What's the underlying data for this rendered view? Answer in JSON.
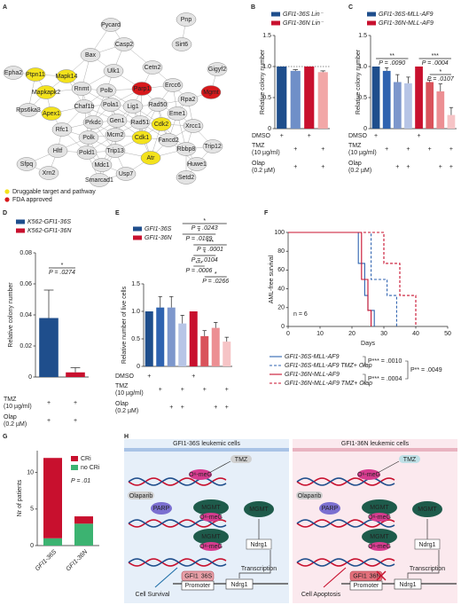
{
  "panel_labels": [
    "A",
    "B",
    "C",
    "D",
    "E",
    "F",
    "G",
    "H"
  ],
  "network": {
    "nodes": [
      {
        "label": "Pycard",
        "color": "#e3e3e3"
      },
      {
        "label": "Pnp",
        "color": "#e3e3e3"
      },
      {
        "label": "Casp2",
        "color": "#e3e3e3"
      },
      {
        "label": "Sirt6",
        "color": "#e3e3e3"
      },
      {
        "label": "Bax",
        "color": "#e3e3e3"
      },
      {
        "label": "Ulk1",
        "color": "#e3e3e3"
      },
      {
        "label": "Cetn2",
        "color": "#e3e3e3"
      },
      {
        "label": "Gigyf2",
        "color": "#e3e3e3"
      },
      {
        "label": "Epha2",
        "color": "#e3e3e3"
      },
      {
        "label": "Ptpn11",
        "color": "#f3e21c"
      },
      {
        "label": "Mapk14",
        "color": "#f3e21c"
      },
      {
        "label": "Mapkapk2",
        "color": "#f3e21c"
      },
      {
        "label": "Rnmt",
        "color": "#e3e3e3"
      },
      {
        "label": "Polb",
        "color": "#e3e3e3"
      },
      {
        "label": "Parp1",
        "color": "#d7191c"
      },
      {
        "label": "Ercc6",
        "color": "#e3e3e3"
      },
      {
        "label": "Rpa2",
        "color": "#e3e3e3"
      },
      {
        "label": "Mgmt",
        "color": "#d7191c"
      },
      {
        "label": "Rps6ka3",
        "color": "#e3e3e3"
      },
      {
        "label": "Apex1",
        "color": "#f3e21c"
      },
      {
        "label": "Chaf1b",
        "color": "#e3e3e3"
      },
      {
        "label": "Pola1",
        "color": "#e3e3e3"
      },
      {
        "label": "Lig1",
        "color": "#e3e3e3"
      },
      {
        "label": "Rad50",
        "color": "#e3e3e3"
      },
      {
        "label": "Eme1",
        "color": "#e3e3e3"
      },
      {
        "label": "Prkdc",
        "color": "#e3e3e3"
      },
      {
        "label": "Gen1",
        "color": "#e3e3e3"
      },
      {
        "label": "Rad51",
        "color": "#e3e3e3"
      },
      {
        "label": "Cdk2",
        "color": "#f3e21c"
      },
      {
        "label": "Xrcc1",
        "color": "#e3e3e3"
      },
      {
        "label": "Rfc1",
        "color": "#e3e3e3"
      },
      {
        "label": "Polk",
        "color": "#e3e3e3"
      },
      {
        "label": "Mcm2",
        "color": "#e3e3e3"
      },
      {
        "label": "Cdk1",
        "color": "#f3e21c"
      },
      {
        "label": "Fancd2",
        "color": "#e3e3e3"
      },
      {
        "label": "Hltf",
        "color": "#e3e3e3"
      },
      {
        "label": "Pold1",
        "color": "#e3e3e3"
      },
      {
        "label": "Trip13",
        "color": "#e3e3e3"
      },
      {
        "label": "Rbbp8",
        "color": "#e3e3e3"
      },
      {
        "label": "Huwe1",
        "color": "#e3e3e3"
      },
      {
        "label": "Sfpq",
        "color": "#e3e3e3"
      },
      {
        "label": "Xrn2",
        "color": "#e3e3e3"
      },
      {
        "label": "Mdc1",
        "color": "#e3e3e3"
      },
      {
        "label": "Atr",
        "color": "#f3e21c"
      },
      {
        "label": "Trip12",
        "color": "#e3e3e3"
      },
      {
        "label": "Usp7",
        "color": "#e3e3e3"
      },
      {
        "label": "Smarcad1",
        "color": "#e3e3e3"
      },
      {
        "label": "Setd2",
        "color": "#e3e3e3"
      }
    ],
    "legend": [
      {
        "label": "Druggable target and pathway",
        "color": "#f3e21c"
      },
      {
        "label": "FDA approved",
        "color": "#d7191c"
      }
    ]
  },
  "chart_data": [
    {
      "type": "bar",
      "ylabel": "Relative colony number",
      "ylim": [
        0,
        1.5
      ],
      "yticks": [
        0,
        0.5,
        {
          "value": 1,
          "label": "1.0"
        },
        1.5
      ],
      "values": [
        1.0,
        0.93,
        1.0,
        0.91
      ],
      "errors": [
        0,
        0.02,
        0,
        0.02
      ],
      "colors": [
        "#1f4e8c",
        "#6f8fc8",
        "#c8102e",
        "#f2a7a7"
      ],
      "series": [
        {
          "name": "GFI1-36S Lin⁻",
          "color": "#1f4e8c"
        },
        {
          "name": "GFI1-36N Lin⁻",
          "color": "#c8102e"
        }
      ],
      "conditions": [
        {
          "label": [
            "DMSO"
          ],
          "marks": [
            "+",
            null,
            "+",
            null
          ]
        },
        {
          "label": [
            "TMZ",
            "(10 µg/ml)"
          ],
          "marks": [
            null,
            "+",
            null,
            "+"
          ]
        },
        {
          "label": [
            "Olap",
            "(0.2 µM)"
          ],
          "marks": [
            null,
            "+",
            null,
            "+"
          ]
        }
      ]
    },
    {
      "type": "bar",
      "ylabel": "Relative colony number",
      "ylim": [
        0,
        1.5
      ],
      "yticks": [
        0,
        0.5,
        {
          "value": 1,
          "label": "1.0"
        },
        1.5
      ],
      "values": [
        1.0,
        0.93,
        0.75,
        0.73,
        1.0,
        0.75,
        0.6,
        0.22
      ],
      "errors": [
        0,
        0.05,
        0.12,
        0.1,
        0,
        0.03,
        0.12,
        0.12
      ],
      "colors": [
        "#1f4e8c",
        "#2f63b0",
        "#7d97cc",
        "#b7c5e6",
        "#c8102e",
        "#d9535b",
        "#ec8f93",
        "#f6c4c6"
      ],
      "series": [
        {
          "name": "GFI1-36S-MLL-AF9",
          "color": "#1f4e8c"
        },
        {
          "name": "GFI1-36N-MLL-AF9",
          "color": "#c8102e"
        }
      ],
      "annotations": [
        {
          "stars": "**",
          "text": "P = .0090"
        },
        {
          "stars": "***",
          "text": "P = .0004"
        },
        {
          "stars": "*",
          "text": "P = .0107"
        }
      ],
      "conditions": [
        {
          "label": [
            "DMSO"
          ],
          "marks": [
            "+",
            null,
            null,
            null,
            "+",
            null,
            null,
            null
          ]
        },
        {
          "label": [
            "TMZ",
            "(10 µg/ml)"
          ],
          "marks": [
            null,
            "+",
            null,
            "+",
            null,
            "+",
            null,
            "+"
          ]
        },
        {
          "label": [
            "Olap",
            "(0.2 µM)"
          ],
          "marks": [
            null,
            null,
            "+",
            "+",
            null,
            null,
            "+",
            "+"
          ]
        }
      ]
    },
    {
      "type": "bar",
      "ylabel": "Relative colony number",
      "ylim": [
        0,
        0.08
      ],
      "yticks": [
        0,
        0.02,
        0.04,
        0.06,
        0.08
      ],
      "values": [
        0.038,
        0.003
      ],
      "errors": [
        0.018,
        0.003
      ],
      "colors": [
        "#1f4e8c",
        "#c8102e"
      ],
      "series": [
        {
          "name": "K562-GFI1-36S",
          "color": "#1f4e8c"
        },
        {
          "name": "K562-GFI1-36N",
          "color": "#c8102e"
        }
      ],
      "annotations": [
        {
          "stars": "*",
          "text": "P = .0274"
        }
      ],
      "conditions": [
        {
          "label": [
            "TMZ",
            "(10 µg/ml)"
          ],
          "marks": [
            "+",
            "+"
          ]
        },
        {
          "label": [
            "Olap",
            "(0.2 µM)"
          ],
          "marks": [
            "+",
            "+"
          ]
        }
      ]
    },
    {
      "type": "bar",
      "ylabel": "Relative number of live cells",
      "ylim": [
        0,
        1.5
      ],
      "yticks": [
        0,
        0.5,
        {
          "value": 1,
          "label": "1.0"
        },
        1.5
      ],
      "values": [
        1.0,
        1.07,
        1.07,
        0.78,
        1.0,
        0.55,
        0.7,
        0.45
      ],
      "errors": [
        0,
        0.2,
        0.2,
        0.15,
        0,
        0.1,
        0.1,
        0.08
      ],
      "colors": [
        "#1f4e8c",
        "#2f63b0",
        "#7d97cc",
        "#b7c5e6",
        "#c8102e",
        "#d9535b",
        "#ec8f93",
        "#f6c4c6"
      ],
      "series": [
        {
          "name": "GFI1-36S",
          "color": "#1f4e8c"
        },
        {
          "name": "GFI1-36N",
          "color": "#c8102e"
        }
      ],
      "annotations": [
        {
          "stars": "*",
          "text": "P = .0243"
        },
        {
          "stars": "*",
          "text": "P = .0189"
        },
        {
          "stars": "***",
          "text": "P = .0001"
        },
        {
          "stars": "*",
          "text": "P = .0104"
        },
        {
          "stars": "***",
          "text": "P = .0006"
        },
        {
          "stars": "*",
          "text": "P = .0266"
        }
      ],
      "conditions": [
        {
          "label": [
            "DMSO"
          ],
          "marks": [
            "+",
            null,
            null,
            null,
            "+",
            null,
            null,
            null
          ]
        },
        {
          "label": [
            "TMZ",
            "(10 µg/ml)"
          ],
          "marks": [
            null,
            "+",
            null,
            "+",
            null,
            "+",
            null,
            "+"
          ]
        },
        {
          "label": [
            "Olap",
            "(0.2 µM)"
          ],
          "marks": [
            null,
            null,
            "+",
            "+",
            null,
            null,
            "+",
            "+"
          ]
        }
      ]
    },
    {
      "type": "survival",
      "ylabel": "AML-free survival",
      "xlabel": "Days",
      "note": "n = 6",
      "xlim": [
        0,
        50
      ],
      "xticks": [
        0,
        10,
        20,
        30,
        40,
        50
      ],
      "ylim": [
        0,
        100
      ],
      "yticks": [
        0,
        20,
        40,
        60,
        80,
        100
      ],
      "series": [
        {
          "name": "GFI1-36S-MLL-AF9",
          "color": "#2f63b0",
          "dashed": false,
          "x": [
            0,
            22,
            24,
            25,
            27
          ],
          "values": [
            100,
            67,
            33,
            17,
            0
          ]
        },
        {
          "name": "GFI1-36S-MLL-AF9 TMZ+ Olap",
          "color": "#2f63b0",
          "dashed": true,
          "x": [
            0,
            26,
            31,
            34
          ],
          "values": [
            100,
            50,
            33,
            0
          ]
        },
        {
          "name": "GFI1-36N-MLL-AF9",
          "color": "#c8102e",
          "dashed": false,
          "x": [
            0,
            23,
            25,
            26
          ],
          "values": [
            100,
            50,
            17,
            0
          ]
        },
        {
          "name": "GFI1-36N-MLL-AF9 TMZ+ Olap",
          "color": "#c8102e",
          "dashed": true,
          "x": [
            0,
            30,
            35,
            40
          ],
          "values": [
            100,
            67,
            33,
            0
          ]
        }
      ],
      "annotations": [
        "P*** = .0010",
        "P*** = .0004",
        "P** = .0049"
      ]
    },
    {
      "type": "stacked_bar",
      "ylabel": "Nr of patients",
      "ylim": [
        0,
        13
      ],
      "yticks": [
        0,
        5,
        10
      ],
      "categories": [
        "GFI1-36S",
        "GFI1-36N"
      ],
      "series": [
        {
          "name": "CRi",
          "color": "#c8102e",
          "values": [
            11,
            1
          ]
        },
        {
          "name": "no CRi",
          "color": "#3cb371",
          "values": [
            1,
            3
          ]
        }
      ],
      "annotation": "P = .01"
    }
  ],
  "schematic": {
    "left_title": "GFI1-36S leukemic cells",
    "right_title": "GFI1-36N leukemic cells",
    "tmz": "TMZ",
    "o6": "O⁶-meG",
    "olaparib": "Olaparib",
    "parp": "PARP",
    "mgmt": "MGMT",
    "ndrg1": "Ndrg1",
    "transcription": "Transcription",
    "promoter": "Promoter",
    "gfi1": "GFI1",
    "left_variant": "36S",
    "right_variant": "36N",
    "survival": "Cell Survival",
    "apoptosis": "Cell Apoptosis"
  }
}
